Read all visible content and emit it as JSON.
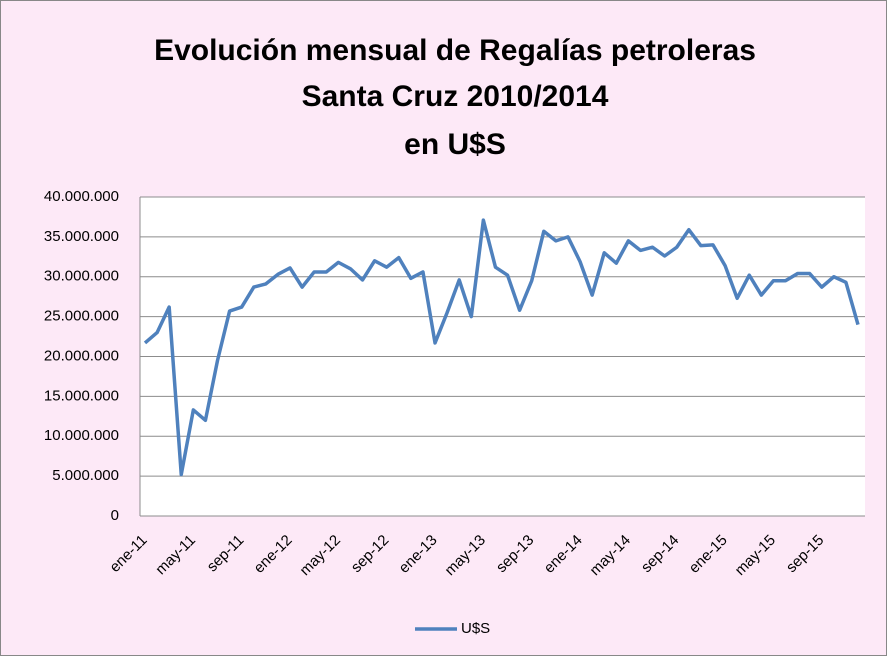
{
  "chart_data": {
    "type": "line",
    "title": [
      "Evolución mensual de Regalías petroleras",
      "Santa Cruz 2010/2014",
      "en U$S"
    ],
    "categories": [
      "ene-11",
      null,
      null,
      null,
      "may-11",
      null,
      null,
      null,
      "sep-11",
      null,
      null,
      null,
      "ene-12",
      null,
      null,
      null,
      "may-12",
      null,
      null,
      null,
      "sep-12",
      null,
      null,
      null,
      "ene-13",
      null,
      null,
      null,
      "may-13",
      null,
      null,
      null,
      "sep-13",
      null,
      null,
      null,
      "ene-14",
      null,
      null,
      null,
      "may-14",
      null,
      null,
      null,
      "sep-14",
      null,
      null,
      null,
      "ene-15",
      null,
      null,
      null,
      "may-15",
      null,
      null,
      null,
      "sep-15",
      null,
      null,
      null
    ],
    "series": [
      {
        "name": "U$S",
        "color": "#4f81bd",
        "values": [
          21700000,
          23000000,
          26200000,
          5200000,
          13300000,
          12000000,
          19500000,
          25700000,
          26200000,
          28700000,
          29100000,
          30300000,
          31100000,
          28700000,
          30600000,
          30600000,
          31800000,
          31000000,
          29600000,
          32000000,
          31200000,
          32400000,
          29800000,
          30600000,
          21700000,
          25500000,
          29600000,
          25000000,
          37100000,
          31200000,
          30200000,
          25800000,
          29500000,
          35700000,
          34500000,
          35000000,
          31900000,
          27700000,
          33000000,
          31700000,
          34500000,
          33300000,
          33700000,
          32600000,
          33700000,
          35900000,
          33900000,
          34000000,
          31400000,
          27300000,
          30200000,
          27700000,
          29500000,
          29500000,
          30400000,
          30400000,
          28700000,
          30000000,
          29300000,
          24000000
        ]
      }
    ],
    "ylim": [
      0,
      40000000
    ],
    "yticks": [
      0,
      {
        "value": 5000000,
        "label": "5.000.000"
      },
      {
        "value": 10000000,
        "label": "10.000.000"
      },
      {
        "value": 15000000,
        "label": "15.000.000"
      },
      {
        "value": 20000000,
        "label": "20.000.000"
      },
      {
        "value": 25000000,
        "label": "25.000.000"
      },
      {
        "value": 30000000,
        "label": "30.000.000"
      },
      {
        "value": 35000000,
        "label": "35.000.000"
      },
      {
        "value": 40000000,
        "label": "40.000.000"
      }
    ],
    "grid": true,
    "legend": "bottom"
  }
}
